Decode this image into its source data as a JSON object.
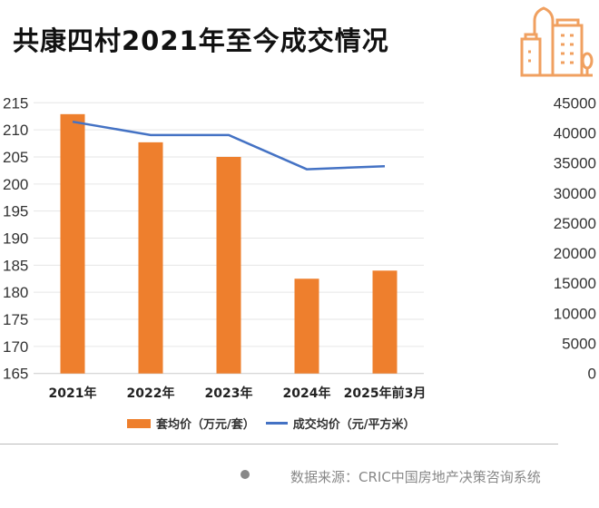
{
  "title": "共康四村2021年至今成交情况",
  "source": "数据来源：CRIC中国房地产决策咨询系统",
  "logo_icon": "city-buildings-icon",
  "colors": {
    "bar": "#ee7f2d",
    "line": "#4472c4",
    "logo": "#f0a060"
  },
  "chart_data": {
    "type": "bar+line",
    "categories": [
      "2021年",
      "2022年",
      "2023年",
      "2024年",
      "2025年前3月"
    ],
    "series": [
      {
        "name": "套均价（万元/套）",
        "type": "bar",
        "axis": "left",
        "values": [
          212.9,
          207.7,
          205.0,
          182.5,
          184.0
        ]
      },
      {
        "name": "成交均价（元/平方米）",
        "type": "line",
        "axis": "right",
        "values": [
          41850,
          39640,
          39640,
          33950,
          34460
        ]
      }
    ],
    "left_axis": {
      "ylim": [
        165,
        215
      ],
      "ticks": [
        165,
        170,
        175,
        180,
        185,
        190,
        195,
        200,
        205,
        210,
        215
      ]
    },
    "right_axis": {
      "ylim": [
        0,
        45000
      ],
      "ticks": [
        0,
        5000,
        10000,
        15000,
        20000,
        25000,
        30000,
        35000,
        40000,
        45000
      ]
    },
    "grid": true,
    "legend": "bottom"
  }
}
